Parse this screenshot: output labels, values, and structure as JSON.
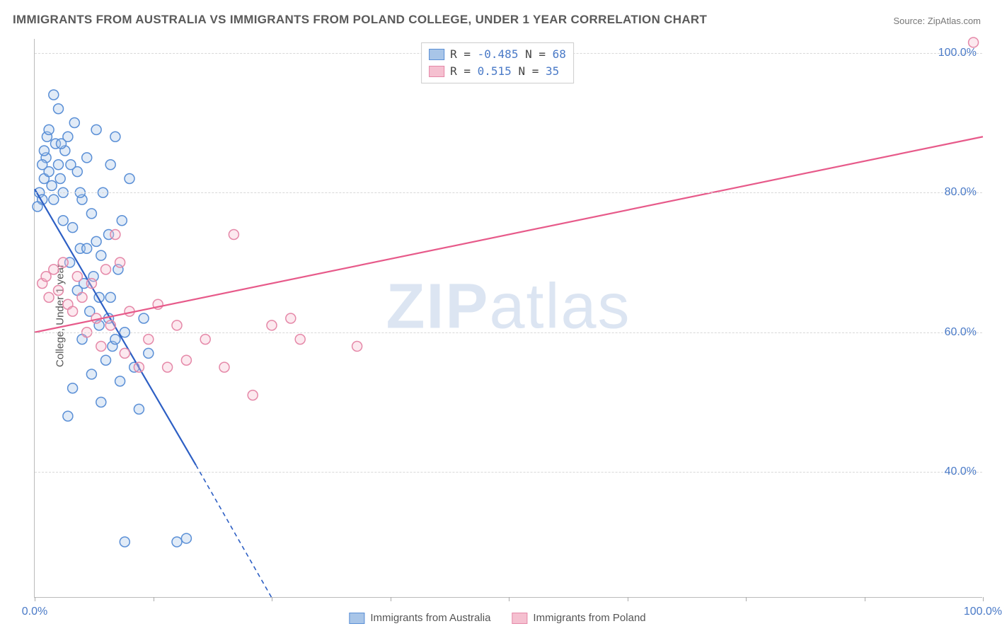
{
  "title": "IMMIGRANTS FROM AUSTRALIA VS IMMIGRANTS FROM POLAND COLLEGE, UNDER 1 YEAR CORRELATION CHART",
  "source": "Source: ZipAtlas.com",
  "watermark": {
    "bold": "ZIP",
    "thin": "atlas"
  },
  "yaxis_title": "College, Under 1 year",
  "chart": {
    "type": "scatter-with-regression",
    "xlim": [
      0,
      100
    ],
    "ylim": [
      22,
      102
    ],
    "ytick_values": [
      40,
      60,
      80,
      100
    ],
    "ytick_labels": [
      "40.0%",
      "60.0%",
      "80.0%",
      "100.0%"
    ],
    "xtick_values": [
      0,
      12.5,
      25,
      37.5,
      50,
      62.5,
      75,
      87.5,
      100
    ],
    "xtick_labels_shown": {
      "0": "0.0%",
      "100": "100.0%"
    },
    "background_color": "#ffffff",
    "grid_color": "#d8d8d8",
    "axis_color": "#bbbbbb",
    "tick_label_color": "#4a7ac7",
    "marker_radius": 7,
    "marker_stroke_width": 1.5,
    "marker_fill_opacity": 0.35,
    "series": [
      {
        "name": "Immigrants from Australia",
        "color_fill": "#a8c5e8",
        "color_stroke": "#5a8fd6",
        "line_color": "#2d5fc4",
        "R": "-0.485",
        "N": "68",
        "regression": {
          "x1": 0,
          "y1": 80.5,
          "x2": 17,
          "y2": 41,
          "extrap_x2": 25,
          "extrap_y2": 22,
          "dash_extrap": true
        },
        "points": [
          [
            0.5,
            80
          ],
          [
            0.8,
            79
          ],
          [
            1.0,
            82
          ],
          [
            1.2,
            85
          ],
          [
            1.3,
            88
          ],
          [
            1.5,
            89
          ],
          [
            2.0,
            94
          ],
          [
            2.2,
            87
          ],
          [
            2.5,
            84
          ],
          [
            2.7,
            82
          ],
          [
            3.0,
            80
          ],
          [
            3.2,
            86
          ],
          [
            3.5,
            88
          ],
          [
            3.7,
            70
          ],
          [
            4.0,
            75
          ],
          [
            4.2,
            90
          ],
          [
            4.5,
            83
          ],
          [
            4.8,
            72
          ],
          [
            5.0,
            79
          ],
          [
            5.2,
            67
          ],
          [
            5.5,
            85
          ],
          [
            5.8,
            63
          ],
          [
            6.0,
            77
          ],
          [
            6.2,
            68
          ],
          [
            6.5,
            89
          ],
          [
            6.8,
            61
          ],
          [
            7.0,
            71
          ],
          [
            7.2,
            80
          ],
          [
            7.5,
            56
          ],
          [
            7.8,
            74
          ],
          [
            8.0,
            65
          ],
          [
            8.2,
            58
          ],
          [
            8.5,
            88
          ],
          [
            8.8,
            69
          ],
          [
            9.0,
            53
          ],
          [
            9.2,
            76
          ],
          [
            9.5,
            60
          ],
          [
            10.0,
            82
          ],
          [
            10.5,
            55
          ],
          [
            11.0,
            49
          ],
          [
            11.5,
            62
          ],
          [
            12.0,
            57
          ],
          [
            3.5,
            48
          ],
          [
            4.0,
            52
          ],
          [
            5.0,
            59
          ],
          [
            6.0,
            54
          ],
          [
            7.0,
            50
          ],
          [
            2.5,
            92
          ],
          [
            0.3,
            78
          ],
          [
            1.8,
            81
          ],
          [
            4.5,
            66
          ],
          [
            6.5,
            73
          ],
          [
            8.0,
            84
          ],
          [
            9.5,
            30
          ],
          [
            15.0,
            30
          ],
          [
            16.0,
            30.5
          ],
          [
            2.0,
            79
          ],
          [
            3.0,
            76
          ],
          [
            1.5,
            83
          ],
          [
            4.8,
            80
          ],
          [
            5.5,
            72
          ],
          [
            6.8,
            65
          ],
          [
            7.8,
            62
          ],
          [
            8.5,
            59
          ],
          [
            2.8,
            87
          ],
          [
            3.8,
            84
          ],
          [
            1.0,
            86
          ],
          [
            0.8,
            84
          ]
        ]
      },
      {
        "name": "Immigrants from Poland",
        "color_fill": "#f5c0d0",
        "color_stroke": "#e588a8",
        "line_color": "#e75a8a",
        "R": "0.515",
        "N": "35",
        "regression": {
          "x1": 0,
          "y1": 60,
          "x2": 100,
          "y2": 88,
          "extrap_x2": 100,
          "extrap_y2": 88,
          "dash_extrap": false
        },
        "points": [
          [
            0.8,
            67
          ],
          [
            1.2,
            68
          ],
          [
            1.5,
            65
          ],
          [
            2.0,
            69
          ],
          [
            2.5,
            66
          ],
          [
            3.0,
            70
          ],
          [
            3.5,
            64
          ],
          [
            4.0,
            63
          ],
          [
            4.5,
            68
          ],
          [
            5.0,
            65
          ],
          [
            5.5,
            60
          ],
          [
            6.0,
            67
          ],
          [
            6.5,
            62
          ],
          [
            7.0,
            58
          ],
          [
            7.5,
            69
          ],
          [
            8.0,
            61
          ],
          [
            8.5,
            74
          ],
          [
            9.0,
            70
          ],
          [
            9.5,
            57
          ],
          [
            10.0,
            63
          ],
          [
            11.0,
            55
          ],
          [
            12.0,
            59
          ],
          [
            13.0,
            64
          ],
          [
            14.0,
            55
          ],
          [
            15.0,
            61
          ],
          [
            16.0,
            56
          ],
          [
            18.0,
            59
          ],
          [
            20.0,
            55
          ],
          [
            21.0,
            74
          ],
          [
            23.0,
            51
          ],
          [
            25.0,
            61
          ],
          [
            27.0,
            62
          ],
          [
            28.0,
            59
          ],
          [
            34.0,
            58
          ],
          [
            99.0,
            101.5
          ]
        ]
      }
    ]
  },
  "legend_top": {
    "rows": [
      {
        "swatch_fill": "#a8c5e8",
        "swatch_stroke": "#5a8fd6",
        "text": "R = ",
        "R": "-0.485",
        "sep": "   N = ",
        "N": "68"
      },
      {
        "swatch_fill": "#f5c0d0",
        "swatch_stroke": "#e588a8",
        "text": "R =  ",
        "R": "0.515",
        "sep": "   N = ",
        "N": "35"
      }
    ]
  },
  "legend_bottom": {
    "items": [
      {
        "swatch_fill": "#a8c5e8",
        "swatch_stroke": "#5a8fd6",
        "label": "Immigrants from Australia"
      },
      {
        "swatch_fill": "#f5c0d0",
        "swatch_stroke": "#e588a8",
        "label": "Immigrants from Poland"
      }
    ]
  }
}
